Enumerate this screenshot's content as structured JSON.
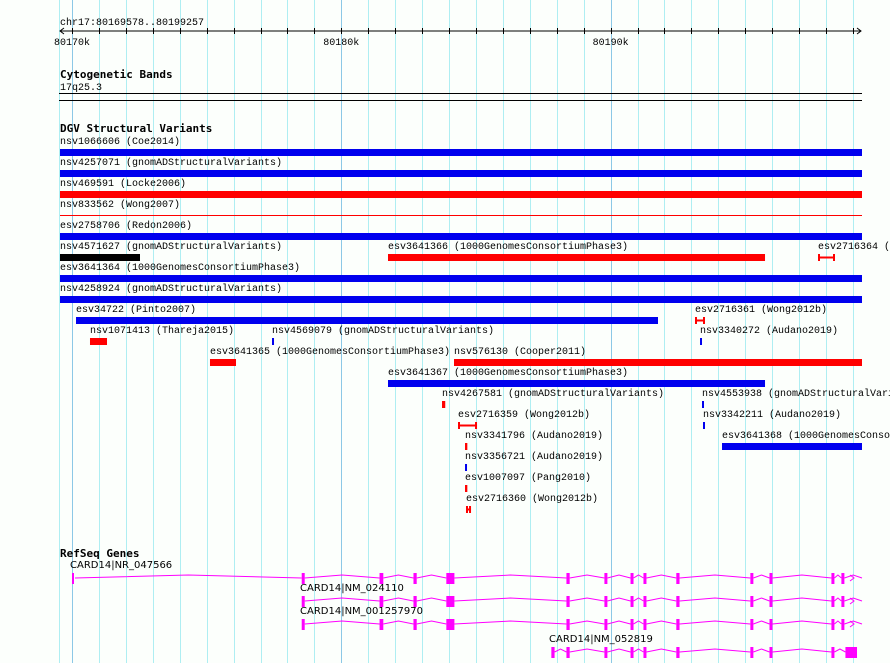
{
  "colors": {
    "grid_minor": "#aeeef2",
    "grid_major": "#8cc8e6",
    "blue": "#0000ee",
    "red": "#ff0000",
    "black": "#000000",
    "gene": "#ff00ff"
  },
  "ruler": {
    "location": "chr17:80169578..80199257",
    "view_start": 80169578,
    "view_end": 80199257,
    "tick_labels": [
      {
        "label": "80170k",
        "pos": 80170000
      },
      {
        "label": "80180k",
        "pos": 80180000
      },
      {
        "label": "80190k",
        "pos": 80190000
      }
    ]
  },
  "cytobands": {
    "title": "Cytogenetic Bands",
    "band": "17q25.3"
  },
  "dgv": {
    "title": "DGV Structural Variants",
    "rows": [
      [
        {
          "label": "nsv1066606 (Coe2014)",
          "start": 80169000,
          "end": 80200000,
          "color": "blue"
        }
      ],
      [
        {
          "label": "nsv4257071 (gnomADStructuralVariants)",
          "start": 80169000,
          "end": 80200000,
          "color": "blue"
        }
      ],
      [
        {
          "label": "nsv469591 (Locke2006)",
          "start": 80169000,
          "end": 80200000,
          "color": "red"
        }
      ],
      [
        {
          "label": "nsv833562 (Wong2007)",
          "start": 80169000,
          "end": 80200000,
          "color": "red",
          "style": "line"
        }
      ],
      [
        {
          "label": "esv2758706 (Redon2006)",
          "start": 80169000,
          "end": 80200000,
          "color": "blue"
        }
      ],
      [
        {
          "label": "nsv4571627 (gnomADStructuralVariants)",
          "start": 80169000,
          "end": 80172525,
          "color": "black"
        },
        {
          "label": "esv3641366 (1000GenomesConsortiumPhase3)",
          "start": 80181734,
          "end": 80195734,
          "color": "red"
        },
        {
          "label": "esv2716364 (",
          "start": 80197702,
          "end": 80198333,
          "color": "red",
          "style": "interval"
        }
      ],
      [
        {
          "label": "esv3641364 (1000GenomesConsortiumPhase3)",
          "start": 80169000,
          "end": 80200000,
          "color": "blue"
        }
      ],
      [
        {
          "label": "nsv4258924 (gnomADStructuralVariants)",
          "start": 80169000,
          "end": 80200000,
          "color": "blue"
        }
      ],
      [
        {
          "label": "esv34722 (Pinto2007)",
          "start": 80170149,
          "end": 80191760,
          "color": "blue"
        },
        {
          "label": "esv2716361 (Wong2012b)",
          "start": 80193134,
          "end": 80193505,
          "color": "red",
          "style": "interval"
        }
      ],
      [
        {
          "label": "nsv1071413 (Thareja2015)",
          "start": 80170668,
          "end": 80171300,
          "color": "red"
        },
        {
          "label": "nsv4569079 (gnomADStructuralVariants)",
          "start": 80177427,
          "end": 80177460,
          "color": "blue"
        },
        {
          "label": "nsv3340272 (Audano2019)",
          "start": 80193320,
          "end": 80193350,
          "color": "blue"
        }
      ],
      [
        {
          "label": "esv3641365 (1000GenomesConsortiumPhase3)",
          "start": 80175124,
          "end": 80176090,
          "color": "red"
        },
        {
          "label": "nsv576130 (Cooper2011)",
          "start": 80184185,
          "end": 80200000,
          "color": "red"
        }
      ],
      [
        {
          "label": "esv3641367 (1000GenomesConsortiumPhase3)",
          "start": 80181734,
          "end": 80195734,
          "color": "blue"
        }
      ],
      [
        {
          "label": "nsv4267581 (gnomADStructuralVariants)",
          "start": 80183740,
          "end": 80183860,
          "color": "red"
        },
        {
          "label": "nsv4553938 (gnomADStructuralVari",
          "start": 80193394,
          "end": 80193430,
          "color": "blue"
        }
      ],
      [
        {
          "label": "esv2716359 (Wong2012b)",
          "start": 80184334,
          "end": 80185040,
          "color": "red",
          "style": "interval"
        },
        {
          "label": "nsv3342211 (Audano2019)",
          "start": 80193431,
          "end": 80193470,
          "color": "blue"
        }
      ],
      [
        {
          "label": "nsv3341796 (Audano2019)",
          "start": 80184594,
          "end": 80184680,
          "color": "red"
        },
        {
          "label": "esv3641368 (1000GenomesConso",
          "start": 80194137,
          "end": 80200000,
          "color": "blue"
        }
      ],
      [
        {
          "label": "nsv3356721 (Audano2019)",
          "start": 80184594,
          "end": 80184640,
          "color": "blue"
        }
      ],
      [
        {
          "label": "esv1007097 (Pang2010)",
          "start": 80184594,
          "end": 80184680,
          "color": "red"
        }
      ],
      [
        {
          "label": "esv2716360 (Wong2012b)",
          "start": 80184631,
          "end": 80184817,
          "color": "red",
          "style": "interval"
        }
      ]
    ]
  },
  "refseq": {
    "title": "RefSeq Genes",
    "transcripts": [
      {
        "label": "CARD14|NR_047566",
        "start": 80170000,
        "end": 80200000,
        "exons": [
          [
            80170000,
            80170040
          ],
          [
            80178530,
            80178640
          ],
          [
            80181420,
            80181560
          ],
          [
            80182680,
            80182800
          ],
          [
            80183900,
            80184200
          ],
          [
            80188360,
            80188480
          ],
          [
            80189770,
            80189880
          ],
          [
            80190740,
            80190850
          ],
          [
            80191220,
            80191330
          ],
          [
            80192440,
            80192560
          ],
          [
            80195190,
            80195300
          ],
          [
            80195900,
            80196010
          ],
          [
            80198200,
            80198310
          ],
          [
            80198570,
            80198680
          ]
        ]
      },
      {
        "label": "CARD14|NM_024110",
        "start": 80178530,
        "end": 80200000,
        "exons": [
          [
            80178530,
            80178640
          ],
          [
            80181420,
            80181560
          ],
          [
            80182680,
            80182800
          ],
          [
            80183900,
            80184200
          ],
          [
            80188360,
            80188480
          ],
          [
            80189770,
            80189880
          ],
          [
            80190740,
            80190850
          ],
          [
            80191220,
            80191330
          ],
          [
            80192440,
            80192560
          ],
          [
            80195190,
            80195300
          ],
          [
            80195900,
            80196010
          ],
          [
            80198200,
            80198310
          ],
          [
            80198570,
            80198680
          ]
        ]
      },
      {
        "label": "CARD14|NM_001257970",
        "start": 80178530,
        "end": 80200000,
        "exons": [
          [
            80178530,
            80178640
          ],
          [
            80181420,
            80181560
          ],
          [
            80182680,
            80182800
          ],
          [
            80183900,
            80184200
          ],
          [
            80188360,
            80188480
          ],
          [
            80189770,
            80189880
          ],
          [
            80190740,
            80190850
          ],
          [
            80191220,
            80191330
          ],
          [
            80192440,
            80192560
          ],
          [
            80195190,
            80195300
          ],
          [
            80195900,
            80196010
          ],
          [
            80198200,
            80198310
          ],
          [
            80198570,
            80198680
          ]
        ]
      },
      {
        "label": "CARD14|NM_052819",
        "start": 80187800,
        "end": 80199150,
        "exons": [
          [
            80187800,
            80187920
          ],
          [
            80188360,
            80188480
          ],
          [
            80189770,
            80189880
          ],
          [
            80190740,
            80190850
          ],
          [
            80191220,
            80191330
          ],
          [
            80192440,
            80192560
          ],
          [
            80195190,
            80195300
          ],
          [
            80195900,
            80196010
          ],
          [
            80198200,
            80198310
          ],
          [
            80198720,
            80199150
          ]
        ]
      }
    ]
  }
}
